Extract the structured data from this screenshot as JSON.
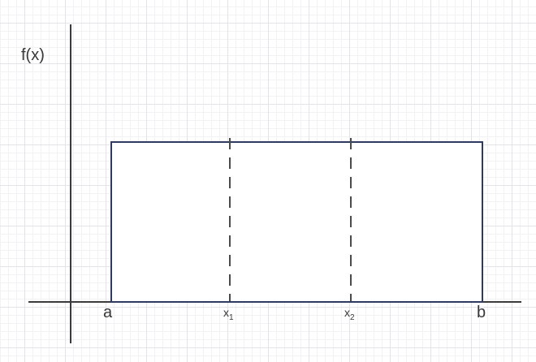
{
  "figure": {
    "y_axis_label": "f(x)",
    "x_axis_labels": {
      "a": "a",
      "x1": {
        "base": "x",
        "sub": "1"
      },
      "x2": {
        "base": "x",
        "sub": "2"
      },
      "b": "b"
    }
  },
  "colors": {
    "background": "#ffffff",
    "grid_minor": "#f2f2f5",
    "grid_major": "#e4e4e8",
    "axis": "#3b3b3b",
    "rect_stroke": "#2f3a60",
    "rect_fill": "#ffffff",
    "dash": "#4a4a4a",
    "text": "#383838"
  }
}
